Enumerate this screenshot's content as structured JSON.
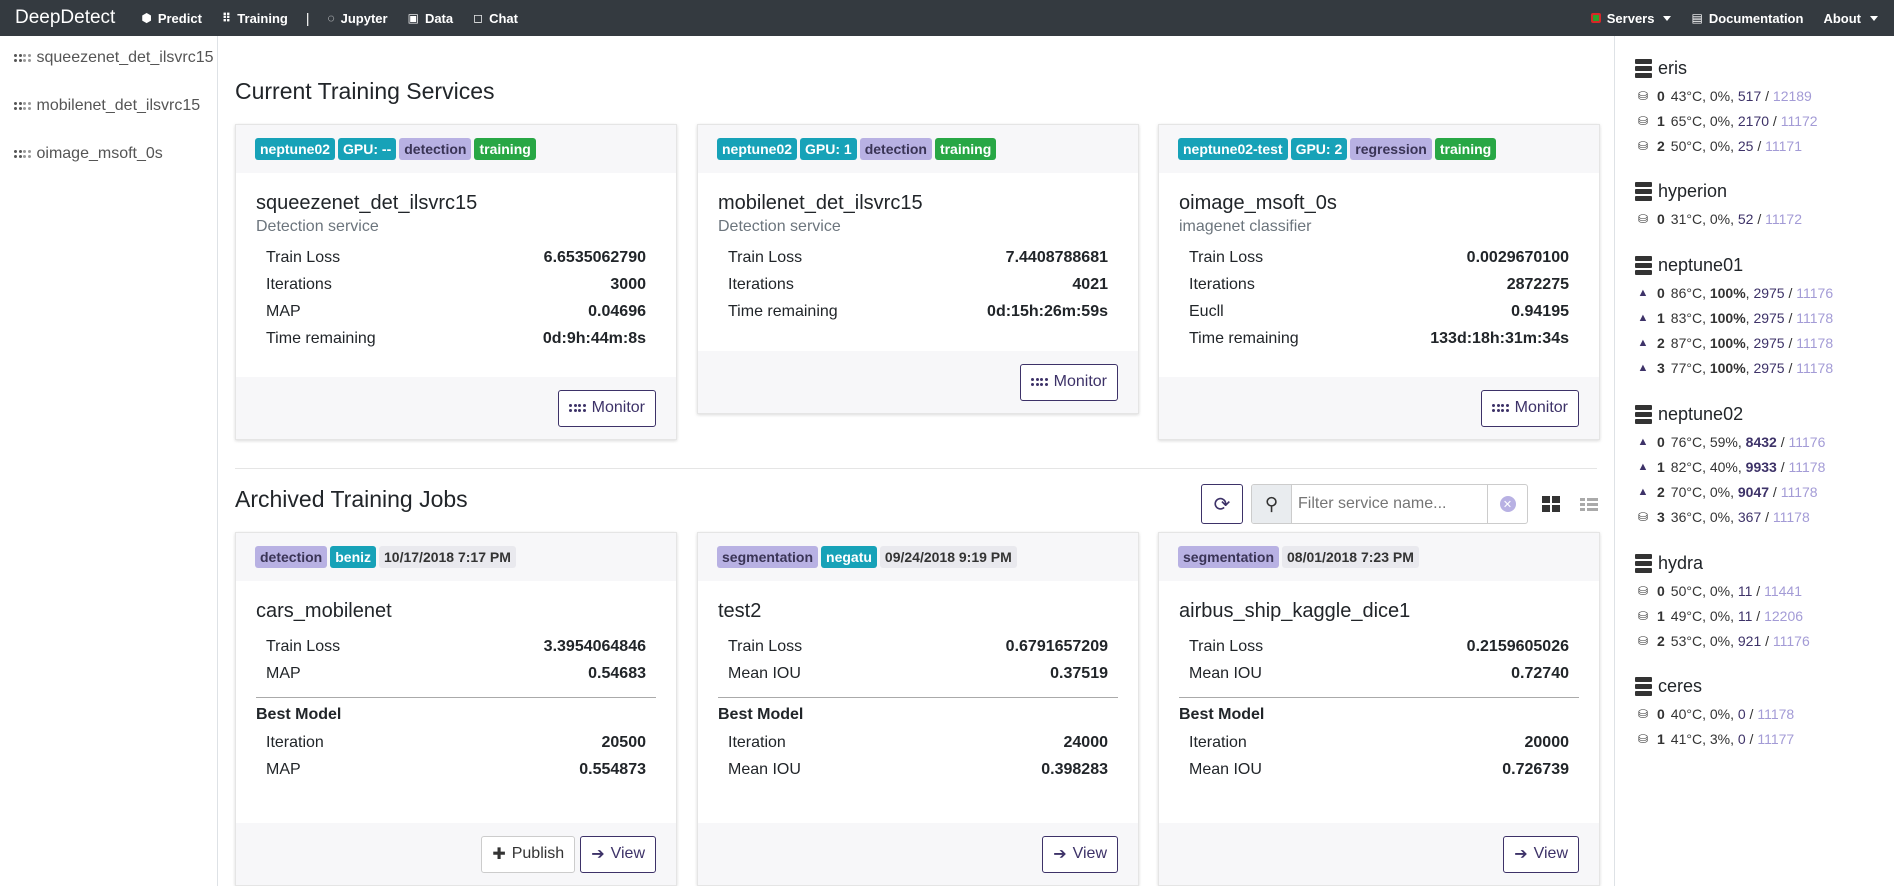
{
  "nav": {
    "brand": "DeepDetect",
    "links": [
      {
        "label": "Predict",
        "icon": "cube-icon"
      },
      {
        "label": "Training",
        "icon": "dots-grid-icon"
      },
      {
        "label": "Jupyter",
        "icon": "circle-notch-icon"
      },
      {
        "label": "Data",
        "icon": "save-icon"
      },
      {
        "label": "Chat",
        "icon": "comment-icon"
      }
    ],
    "separator": "|",
    "servers_label": "Servers",
    "documentation_label": "Documentation",
    "about_label": "About"
  },
  "left_sidebar": {
    "items": [
      "squeezenet_det_ilsvrc15",
      "mobilenet_det_ilsvrc15",
      "oimage_msoft_0s"
    ]
  },
  "current": {
    "title": "Current Training Services",
    "cards": [
      {
        "badges": [
          "neptune02",
          "GPU: --",
          "detection",
          "training"
        ],
        "name": "squeezenet_det_ilsvrc15",
        "desc": "Detection service",
        "stats": [
          {
            "label": "Train Loss",
            "value": "6.6535062790"
          },
          {
            "label": "Iterations",
            "value": "3000"
          },
          {
            "label": "MAP",
            "value": "0.04696"
          },
          {
            "label": "Time remaining",
            "value": "0d:9h:44m:8s"
          }
        ],
        "monitor_label": "Monitor"
      },
      {
        "badges": [
          "neptune02",
          "GPU: 1",
          "detection",
          "training"
        ],
        "name": "mobilenet_det_ilsvrc15",
        "desc": "Detection service",
        "stats": [
          {
            "label": "Train Loss",
            "value": "7.4408788681"
          },
          {
            "label": "Iterations",
            "value": "4021"
          },
          {
            "label": "Time remaining",
            "value": "0d:15h:26m:59s"
          }
        ],
        "monitor_label": "Monitor"
      },
      {
        "badges": [
          "neptune02-test",
          "GPU: 2",
          "regression",
          "training"
        ],
        "name": "oimage_msoft_0s",
        "desc": "imagenet classifier",
        "stats": [
          {
            "label": "Train Loss",
            "value": "0.0029670100"
          },
          {
            "label": "Iterations",
            "value": "2872275"
          },
          {
            "label": "Eucll",
            "value": "0.94195"
          },
          {
            "label": "Time remaining",
            "value": "133d:18h:31m:34s"
          }
        ],
        "monitor_label": "Monitor"
      }
    ]
  },
  "archived": {
    "title": "Archived Training Jobs",
    "search_placeholder": "Filter service name...",
    "best_model_label": "Best Model",
    "cards": [
      {
        "badges": [
          "detection",
          "beniz"
        ],
        "date": "10/17/2018 7:17 PM",
        "name": "cars_mobilenet",
        "stats": [
          {
            "label": "Train Loss",
            "value": "3.3954064846"
          },
          {
            "label": "MAP",
            "value": "0.54683"
          }
        ],
        "best": [
          {
            "label": "Iteration",
            "value": "20500"
          },
          {
            "label": "MAP",
            "value": "0.554873"
          }
        ],
        "publish_label": "Publish",
        "view_label": "View"
      },
      {
        "badges": [
          "segmentation",
          "negatu"
        ],
        "date": "09/24/2018 9:19 PM",
        "name": "test2",
        "stats": [
          {
            "label": "Train Loss",
            "value": "0.6791657209"
          },
          {
            "label": "Mean IOU",
            "value": "0.37519"
          }
        ],
        "best": [
          {
            "label": "Iteration",
            "value": "24000"
          },
          {
            "label": "Mean IOU",
            "value": "0.398283"
          }
        ],
        "view_label": "View"
      },
      {
        "badges": [
          "segmentation"
        ],
        "date": "08/01/2018 7:23 PM",
        "name": "airbus_ship_kaggle_dice1",
        "stats": [
          {
            "label": "Train Loss",
            "value": "0.2159605026"
          },
          {
            "label": "Mean IOU",
            "value": "0.72740"
          }
        ],
        "best": [
          {
            "label": "Iteration",
            "value": "20000"
          },
          {
            "label": "Mean IOU",
            "value": "0.726739"
          }
        ],
        "view_label": "View"
      }
    ]
  },
  "servers": [
    {
      "name": "eris",
      "gpus": [
        {
          "idx": "0",
          "temp": "43°C",
          "util": "0%",
          "mem": "517",
          "total": "12189",
          "icon": "hdd-icon"
        },
        {
          "idx": "1",
          "temp": "65°C",
          "util": "0%",
          "mem": "2170",
          "total": "11172",
          "icon": "hdd-icon"
        },
        {
          "idx": "2",
          "temp": "50°C",
          "util": "0%",
          "mem": "25",
          "total": "11171",
          "icon": "hdd-icon"
        }
      ]
    },
    {
      "name": "hyperion",
      "gpus": [
        {
          "idx": "0",
          "temp": "31°C",
          "util": "0%",
          "mem": "52",
          "total": "11172",
          "icon": "hdd-icon"
        }
      ]
    },
    {
      "name": "neptune01",
      "gpus": [
        {
          "idx": "0",
          "temp": "86°C",
          "util": "100%",
          "mem": "2975",
          "total": "11176",
          "icon": "fire-icon"
        },
        {
          "idx": "1",
          "temp": "83°C",
          "util": "100%",
          "mem": "2975",
          "total": "11178",
          "icon": "fire-icon"
        },
        {
          "idx": "2",
          "temp": "87°C",
          "util": "100%",
          "mem": "2975",
          "total": "11178",
          "icon": "fire-icon"
        },
        {
          "idx": "3",
          "temp": "77°C",
          "util": "100%",
          "mem": "2975",
          "total": "11178",
          "icon": "fire-icon"
        }
      ]
    },
    {
      "name": "neptune02",
      "gpus": [
        {
          "idx": "0",
          "temp": "76°C",
          "util": "59%",
          "mem": "8432",
          "total": "11176",
          "icon": "fire-icon"
        },
        {
          "idx": "1",
          "temp": "82°C",
          "util": "40%",
          "mem": "9933",
          "total": "11178",
          "icon": "fire-icon"
        },
        {
          "idx": "2",
          "temp": "70°C",
          "util": "0%",
          "mem": "9047",
          "total": "11178",
          "icon": "fire-icon"
        },
        {
          "idx": "3",
          "temp": "36°C",
          "util": "0%",
          "mem": "367",
          "total": "11178",
          "icon": "hdd-icon"
        }
      ]
    },
    {
      "name": "hydra",
      "gpus": [
        {
          "idx": "0",
          "temp": "50°C",
          "util": "0%",
          "mem": "11",
          "total": "11441",
          "icon": "hdd-icon"
        },
        {
          "idx": "1",
          "temp": "49°C",
          "util": "0%",
          "mem": "11",
          "total": "12206",
          "icon": "hdd-icon"
        },
        {
          "idx": "2",
          "temp": "53°C",
          "util": "0%",
          "mem": "921",
          "total": "11176",
          "icon": "hdd-icon"
        }
      ]
    },
    {
      "name": "ceres",
      "gpus": [
        {
          "idx": "0",
          "temp": "40°C",
          "util": "0%",
          "mem": "0",
          "total": "11178",
          "icon": "hdd-icon"
        },
        {
          "idx": "1",
          "temp": "41°C",
          "util": "3%",
          "mem": "0",
          "total": "11177",
          "icon": "hdd-icon"
        }
      ]
    }
  ]
}
